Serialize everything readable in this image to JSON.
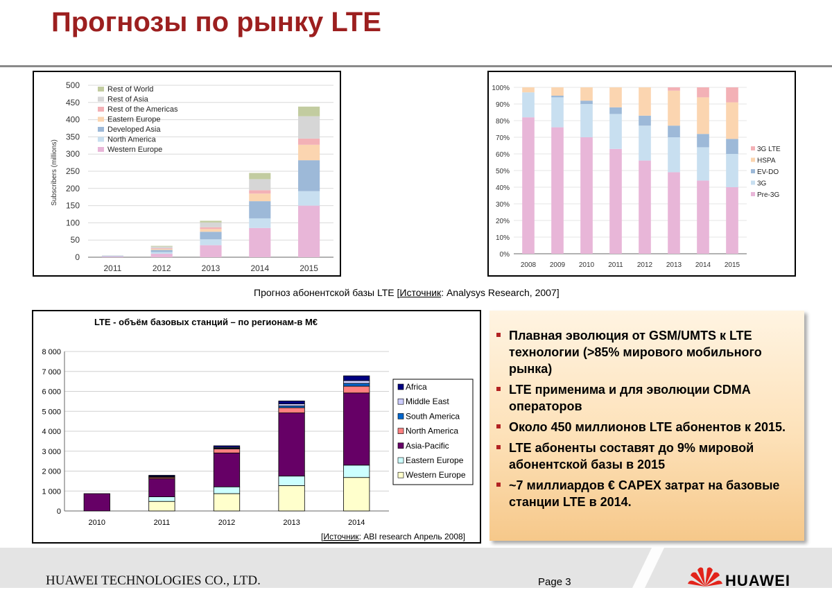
{
  "slide": {
    "title": "Прогнозы по рынку LTE",
    "caption_pre": "Прогноз абонентской базы LTE [",
    "caption_link": "Источник",
    "caption_post": ": Analysys Research, 2007]",
    "footer_company": "HUAWEI TECHNOLOGIES CO., LTD.",
    "page_label": "Page 3",
    "logo_text": "HUAWEI",
    "bullets": [
      "Плавная эволюция от GSM/UMTS к LTE технологии (>85% мирового мобильного рынка)",
      "LTE применима и для эволюции CDMA операторов",
      "Около 450 миллионов LTE абонентов к 2015.",
      "LTE абоненты составят до 9% мировой абонентской базы в 2015",
      "~7 миллиардов € CAPEX затрат на базовые станции LTE в 2014."
    ],
    "colors": {
      "title": "#9c1f1f",
      "bullet_marker": "#b22222",
      "logo_red": "#e2231a"
    }
  },
  "chart_data": [
    {
      "type": "bar",
      "stacked": true,
      "title": "",
      "ylabel": "Subscribers (millions)",
      "xlabel": "",
      "ylim": [
        0,
        500
      ],
      "yticks": [
        0,
        50,
        100,
        150,
        200,
        250,
        300,
        350,
        400,
        450,
        500
      ],
      "grid": true,
      "legend_position": "top-left",
      "categories": [
        "2011",
        "2012",
        "2013",
        "2014",
        "2015"
      ],
      "series": [
        {
          "name": "Western Europe",
          "color": "#e8b6d8",
          "values": [
            2,
            10,
            35,
            85,
            150
          ]
        },
        {
          "name": "North America",
          "color": "#c8dff0",
          "values": [
            1,
            5,
            17,
            28,
            42
          ]
        },
        {
          "name": "Developed Asia",
          "color": "#9db9d8",
          "values": [
            1,
            6,
            22,
            50,
            90
          ]
        },
        {
          "name": "Eastern Europe",
          "color": "#fbd5b0",
          "values": [
            0,
            3,
            8,
            22,
            45
          ]
        },
        {
          "name": "Rest of the Americas",
          "color": "#f3b1b6",
          "values": [
            0,
            2,
            5,
            10,
            18
          ]
        },
        {
          "name": "Rest of Asia",
          "color": "#d6d6d6",
          "values": [
            1,
            5,
            14,
            32,
            65
          ]
        },
        {
          "name": "Rest of World",
          "color": "#c2cca0",
          "values": [
            0,
            2,
            5,
            18,
            28
          ]
        }
      ]
    },
    {
      "type": "bar",
      "stacked": true,
      "percent": true,
      "title": "",
      "xlabel": "",
      "ylabel": "",
      "ylim": [
        0,
        100
      ],
      "yticks": [
        "0%",
        "10%",
        "20%",
        "30%",
        "40%",
        "50%",
        "60%",
        "70%",
        "80%",
        "90%",
        "100%"
      ],
      "grid": true,
      "legend_position": "right",
      "categories": [
        "2008",
        "2009",
        "2010",
        "2011",
        "2012",
        "2013",
        "2014",
        "2015"
      ],
      "series": [
        {
          "name": "Pre-3G",
          "color": "#e8b6d8",
          "values": [
            82,
            76,
            70,
            63,
            56,
            49,
            44,
            40
          ]
        },
        {
          "name": "3G",
          "color": "#c8dff0",
          "values": [
            15,
            18,
            20,
            21,
            21,
            21,
            20,
            20
          ]
        },
        {
          "name": "EV-DO",
          "color": "#9db9d8",
          "values": [
            0,
            1,
            2,
            4,
            6,
            7,
            8,
            9
          ]
        },
        {
          "name": "HSPA",
          "color": "#fbd5b0",
          "values": [
            3,
            5,
            8,
            12,
            17,
            21,
            22,
            22
          ]
        },
        {
          "name": "3G LTE",
          "color": "#f3b1b6",
          "values": [
            0,
            0,
            0,
            0,
            0,
            2,
            6,
            9
          ]
        }
      ]
    },
    {
      "type": "bar",
      "stacked": true,
      "title": "LTE - объём базовых станций – по регионам-в М€",
      "xlabel": "",
      "ylabel": "",
      "ylim": [
        0,
        8000
      ],
      "yticks": [
        "0",
        "1 000",
        "2 000",
        "3 000",
        "4 000",
        "5 000",
        "6 000",
        "7 000",
        "8 000"
      ],
      "grid": true,
      "legend_position": "right",
      "source_pre": "[",
      "source_link": "Источник",
      "source_post": ": ABI research Апрель 2008]",
      "categories": [
        "2010",
        "2011",
        "2012",
        "2013",
        "2014"
      ],
      "series": [
        {
          "name": "Western Europe",
          "color": "#ffffcc",
          "values": [
            0,
            480,
            870,
            1270,
            1680
          ]
        },
        {
          "name": "Eastern Europe",
          "color": "#ccffff",
          "values": [
            0,
            230,
            340,
            480,
            620
          ]
        },
        {
          "name": "Asia-Pacific",
          "color": "#660066",
          "values": [
            870,
            910,
            1700,
            3170,
            3620
          ]
        },
        {
          "name": "North America",
          "color": "#ff8080",
          "values": [
            0,
            60,
            200,
            260,
            340
          ]
        },
        {
          "name": "South America",
          "color": "#0066cc",
          "values": [
            0,
            30,
            40,
            90,
            140
          ]
        },
        {
          "name": "Middle East",
          "color": "#ccccff",
          "values": [
            0,
            30,
            40,
            100,
            140
          ]
        },
        {
          "name": "Africa",
          "color": "#000080",
          "values": [
            0,
            50,
            80,
            150,
            240
          ]
        }
      ]
    }
  ]
}
